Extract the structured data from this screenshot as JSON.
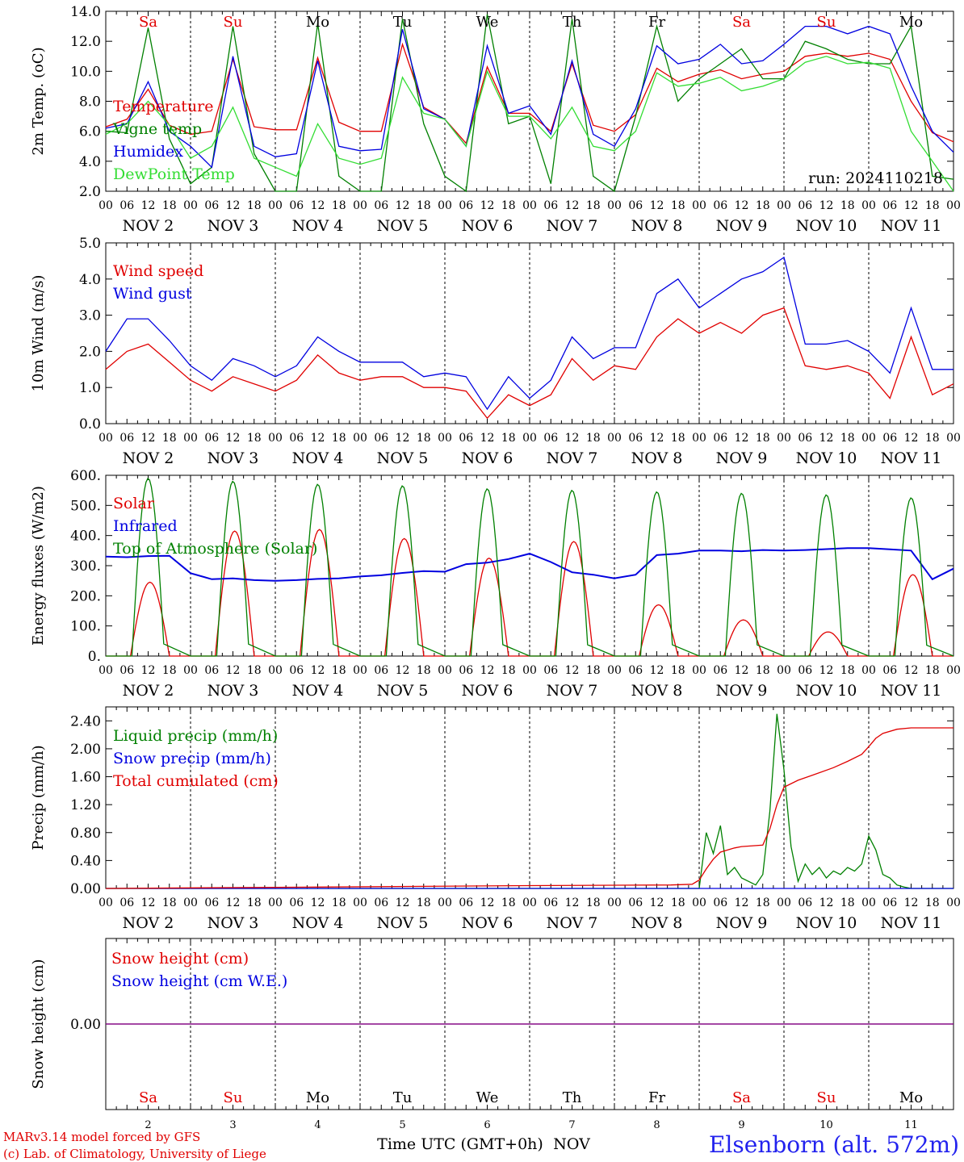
{
  "run_label": "run: 2024110218",
  "station": "Elsenborn (alt. 572m)",
  "credit": {
    "line1": "MARv3.14 model forced by GFS",
    "line2": "(c) Lab. of Climatology, University of Liege"
  },
  "x_axis": {
    "hour_ticks": [
      "00",
      "06",
      "12",
      "18"
    ],
    "end_tick": "00",
    "date_labels": [
      "NOV  2",
      "NOV  3",
      "NOV  4",
      "NOV  5",
      "NOV  6",
      "NOV  7",
      "NOV  8",
      "NOV  9",
      "NOV 10",
      "NOV 11"
    ],
    "bottom_day_numbers": [
      "2",
      "3",
      "4",
      "5",
      "6",
      "7",
      "8",
      "9",
      "10",
      "11"
    ],
    "bottom_title": "Time UTC (GMT+0h)",
    "bottom_month": "NOV"
  },
  "weekdays": [
    {
      "label": "Sa",
      "color": "#e00000"
    },
    {
      "label": "Su",
      "color": "#e00000"
    },
    {
      "label": "Mo",
      "color": "#000000"
    },
    {
      "label": "Tu",
      "color": "#000000"
    },
    {
      "label": "We",
      "color": "#000000"
    },
    {
      "label": "Th",
      "color": "#000000"
    },
    {
      "label": "Fr",
      "color": "#000000"
    },
    {
      "label": "Sa",
      "color": "#e00000"
    },
    {
      "label": "Su",
      "color": "#e00000"
    },
    {
      "label": "Mo",
      "color": "#000000"
    }
  ],
  "colors": {
    "red": "#e00000",
    "green": "#008000",
    "blue": "#0000e0",
    "lightgreen": "#33dd33",
    "purple": "#800080",
    "title_blue": "#2222ee"
  },
  "chart_data": [
    {
      "type": "line",
      "ylabel": "2m Temp. (oC)",
      "ylim": [
        2.0,
        14.0
      ],
      "yticks": [
        "2.0",
        "4.0",
        "6.0",
        "8.0",
        "10.0",
        "12.0",
        "14.0"
      ],
      "x_unit": "hours since 2024-11-02 00 UTC",
      "x_range": [
        0,
        240
      ],
      "series": [
        {
          "name": "Temperature",
          "color": "red",
          "x": [
            0,
            6,
            12,
            18,
            24,
            30,
            36,
            42,
            48,
            54,
            60,
            66,
            72,
            78,
            84,
            90,
            96,
            102,
            108,
            114,
            120,
            126,
            132,
            138,
            144,
            150,
            156,
            162,
            168,
            174,
            180,
            186,
            192,
            198,
            204,
            210,
            216,
            222,
            228,
            234,
            240
          ],
          "values": [
            6.3,
            6.8,
            8.8,
            6.4,
            5.8,
            6.0,
            10.8,
            6.3,
            6.1,
            6.1,
            10.9,
            6.6,
            6.0,
            6.0,
            11.8,
            7.6,
            6.8,
            5.2,
            10.3,
            7.2,
            7.2,
            6.0,
            10.5,
            6.4,
            6.0,
            7.1,
            10.2,
            9.3,
            9.8,
            10.1,
            9.5,
            9.8,
            10.0,
            11.0,
            11.2,
            11.0,
            11.2,
            10.8,
            8.0,
            5.9,
            5.3
          ]
        },
        {
          "name": "Vigne temp",
          "color": "green",
          "x": [
            0,
            6,
            12,
            18,
            24,
            30,
            36,
            42,
            48,
            54,
            60,
            66,
            72,
            78,
            84,
            90,
            96,
            102,
            108,
            114,
            120,
            126,
            132,
            138,
            144,
            150,
            156,
            162,
            168,
            174,
            180,
            186,
            192,
            198,
            204,
            210,
            216,
            222,
            228,
            234,
            240
          ],
          "values": [
            6.0,
            5.9,
            12.9,
            5.5,
            2.5,
            3.6,
            13.0,
            4.5,
            2.0,
            2.0,
            13.2,
            3.0,
            2.0,
            2.0,
            13.5,
            6.5,
            3.0,
            1.8,
            13.8,
            6.5,
            7.0,
            2.5,
            13.5,
            3.0,
            2.0,
            7.0,
            13.0,
            8.0,
            9.5,
            10.5,
            11.5,
            9.5,
            9.5,
            12.0,
            11.5,
            10.8,
            10.5,
            10.5,
            13.0,
            3.0,
            2.8
          ]
        },
        {
          "name": "Humidex",
          "color": "blue",
          "x": [
            0,
            6,
            12,
            18,
            24,
            30,
            36,
            42,
            48,
            54,
            60,
            66,
            72,
            78,
            84,
            90,
            96,
            102,
            108,
            114,
            120,
            126,
            132,
            138,
            144,
            150,
            156,
            162,
            168,
            174,
            180,
            186,
            192,
            198,
            204,
            210,
            216,
            222,
            228,
            234,
            240
          ],
          "values": [
            6.2,
            6.5,
            9.3,
            6.0,
            5.0,
            3.6,
            11.0,
            5.0,
            4.3,
            4.5,
            10.7,
            5.0,
            4.7,
            4.8,
            12.8,
            7.5,
            6.8,
            5.0,
            11.7,
            7.2,
            7.7,
            5.8,
            10.7,
            5.8,
            5.0,
            7.5,
            11.7,
            10.5,
            10.8,
            11.8,
            10.5,
            10.7,
            11.8,
            13.0,
            13.0,
            12.5,
            13.0,
            12.5,
            9.0,
            6.0,
            4.6
          ]
        },
        {
          "name": "DewPoint Temp",
          "color": "lightgreen",
          "x": [
            0,
            6,
            12,
            18,
            24,
            30,
            36,
            42,
            48,
            54,
            60,
            66,
            72,
            78,
            84,
            90,
            96,
            102,
            108,
            114,
            120,
            126,
            132,
            138,
            144,
            150,
            156,
            162,
            168,
            174,
            180,
            186,
            192,
            198,
            204,
            210,
            216,
            222,
            228,
            234,
            240
          ],
          "values": [
            5.8,
            6.5,
            8.0,
            6.4,
            4.2,
            5.0,
            7.6,
            4.2,
            3.6,
            3.0,
            6.5,
            4.2,
            3.8,
            4.2,
            9.6,
            7.2,
            6.8,
            5.0,
            10.0,
            7.0,
            7.0,
            5.5,
            7.6,
            5.0,
            4.7,
            6.0,
            9.9,
            9.0,
            9.2,
            9.6,
            8.7,
            9.0,
            9.5,
            10.6,
            11.0,
            10.5,
            10.6,
            10.2,
            6.0,
            4.0,
            1.6
          ]
        }
      ]
    },
    {
      "type": "line",
      "ylabel": "10m Wind (m/s)",
      "ylim": [
        0.0,
        5.0
      ],
      "yticks": [
        "0.0",
        "1.0",
        "2.0",
        "3.0",
        "4.0",
        "5.0"
      ],
      "x_range": [
        0,
        240
      ],
      "series": [
        {
          "name": "Wind speed",
          "color": "red",
          "x": [
            0,
            6,
            12,
            18,
            24,
            30,
            36,
            42,
            48,
            54,
            60,
            66,
            72,
            78,
            84,
            90,
            96,
            102,
            108,
            114,
            120,
            126,
            132,
            138,
            144,
            150,
            156,
            162,
            168,
            174,
            180,
            186,
            192,
            198,
            204,
            210,
            216,
            222,
            228,
            234,
            240
          ],
          "values": [
            1.5,
            2.0,
            2.2,
            1.7,
            1.2,
            0.9,
            1.3,
            1.1,
            0.9,
            1.2,
            1.9,
            1.4,
            1.2,
            1.3,
            1.3,
            1.0,
            1.0,
            0.9,
            0.15,
            0.8,
            0.5,
            0.8,
            1.8,
            1.2,
            1.6,
            1.5,
            2.4,
            2.9,
            2.5,
            2.8,
            2.5,
            3.0,
            3.2,
            1.6,
            1.5,
            1.6,
            1.4,
            0.7,
            2.4,
            0.8,
            1.1
          ]
        },
        {
          "name": "Wind gust",
          "color": "blue",
          "x": [
            0,
            6,
            12,
            18,
            24,
            30,
            36,
            42,
            48,
            54,
            60,
            66,
            72,
            78,
            84,
            90,
            96,
            102,
            108,
            114,
            120,
            126,
            132,
            138,
            144,
            150,
            156,
            162,
            168,
            174,
            180,
            186,
            192,
            198,
            204,
            210,
            216,
            222,
            228,
            234,
            240
          ],
          "values": [
            2.0,
            2.9,
            2.9,
            2.3,
            1.6,
            1.2,
            1.8,
            1.6,
            1.3,
            1.6,
            2.4,
            2.0,
            1.7,
            1.7,
            1.7,
            1.3,
            1.4,
            1.3,
            0.4,
            1.3,
            0.7,
            1.2,
            2.4,
            1.8,
            2.1,
            2.1,
            3.6,
            4.0,
            3.2,
            3.6,
            4.0,
            4.2,
            4.6,
            2.2,
            2.2,
            2.3,
            2.0,
            1.4,
            3.2,
            1.5,
            1.5
          ]
        }
      ]
    },
    {
      "type": "line",
      "ylabel": "Energy fluxes (W/m2)",
      "ylim": [
        0,
        600
      ],
      "yticks": [
        "0.",
        "100.",
        "200.",
        "300.",
        "400.",
        "500.",
        "600."
      ],
      "x_range": [
        0,
        240
      ],
      "series": [
        {
          "name": "Solar",
          "color": "red",
          "daily_peak_hour": 12.5,
          "daily_half_width_hours": 5.5,
          "daily_peaks": [
            245,
            415,
            420,
            390,
            325,
            380,
            170,
            120,
            80,
            270
          ]
        },
        {
          "name": "Infrared",
          "color": "blue",
          "x": [
            0,
            6,
            12,
            18,
            24,
            30,
            36,
            42,
            48,
            54,
            60,
            66,
            72,
            78,
            84,
            90,
            96,
            102,
            108,
            114,
            120,
            126,
            132,
            138,
            144,
            150,
            156,
            162,
            168,
            174,
            180,
            186,
            192,
            198,
            204,
            210,
            216,
            222,
            228,
            234,
            240
          ],
          "values": [
            330,
            328,
            332,
            333,
            275,
            255,
            258,
            252,
            250,
            252,
            256,
            258,
            264,
            268,
            276,
            282,
            280,
            305,
            310,
            322,
            340,
            312,
            278,
            270,
            258,
            270,
            335,
            340,
            350,
            350,
            348,
            352,
            350,
            352,
            355,
            358,
            358,
            354,
            350,
            255,
            290
          ]
        },
        {
          "name": "Top of Atmosphere (Solar)",
          "color": "green",
          "daily_peak_hour": 12,
          "daily_half_width_hours": 4.6,
          "daily_peaks": [
            590,
            580,
            570,
            565,
            555,
            550,
            545,
            540,
            535,
            525
          ]
        }
      ]
    },
    {
      "type": "line",
      "ylabel": "Precip (mm/h)",
      "ylim": [
        0.0,
        2.6
      ],
      "yticks": [
        "0.00",
        "0.40",
        "0.80",
        "1.20",
        "1.60",
        "2.00",
        "2.40"
      ],
      "x_range": [
        0,
        240
      ],
      "series": [
        {
          "name": "Liquid precip (mm/h)",
          "color": "green",
          "x": [
            0,
            168,
            170,
            172,
            174,
            176,
            178,
            180,
            182,
            184,
            186,
            188,
            190,
            192,
            194,
            196,
            198,
            200,
            202,
            204,
            206,
            208,
            210,
            212,
            214,
            216,
            218,
            220,
            222,
            224,
            226,
            228,
            240
          ],
          "values": [
            0,
            0,
            0.8,
            0.5,
            0.9,
            0.2,
            0.3,
            0.15,
            0.1,
            0.05,
            0.2,
            1.1,
            2.5,
            1.7,
            0.6,
            0.1,
            0.35,
            0.2,
            0.3,
            0.15,
            0.25,
            0.2,
            0.3,
            0.25,
            0.35,
            0.75,
            0.55,
            0.2,
            0.15,
            0.05,
            0.02,
            0,
            0
          ]
        },
        {
          "name": "Snow precip (mm/h)",
          "color": "blue",
          "x": [
            0,
            240
          ],
          "values": [
            0,
            0
          ]
        },
        {
          "name": "Total cumulated (cm)",
          "color": "red",
          "x": [
            0,
            60,
            120,
            160,
            166,
            168,
            170,
            172,
            174,
            176,
            178,
            180,
            186,
            188,
            190,
            192,
            196,
            200,
            206,
            210,
            214,
            216,
            218,
            220,
            224,
            228,
            232,
            240
          ],
          "values": [
            0,
            0.02,
            0.04,
            0.05,
            0.06,
            0.12,
            0.28,
            0.42,
            0.52,
            0.55,
            0.58,
            0.6,
            0.62,
            0.85,
            1.2,
            1.45,
            1.55,
            1.62,
            1.73,
            1.82,
            1.92,
            2.03,
            2.15,
            2.22,
            2.28,
            2.3,
            2.3,
            2.3
          ]
        }
      ]
    },
    {
      "type": "line",
      "ylabel": "Snow height (cm)",
      "yticks": [
        "0.00"
      ],
      "x_range": [
        0,
        240
      ],
      "series": [
        {
          "name": "Snow height (cm)",
          "color": "red",
          "x": [
            0,
            240
          ],
          "values": [
            0,
            0
          ]
        },
        {
          "name": "Snow height (cm W.E.)",
          "color": "blue",
          "x": [
            0,
            240
          ],
          "values": [
            0,
            0
          ]
        }
      ]
    }
  ]
}
